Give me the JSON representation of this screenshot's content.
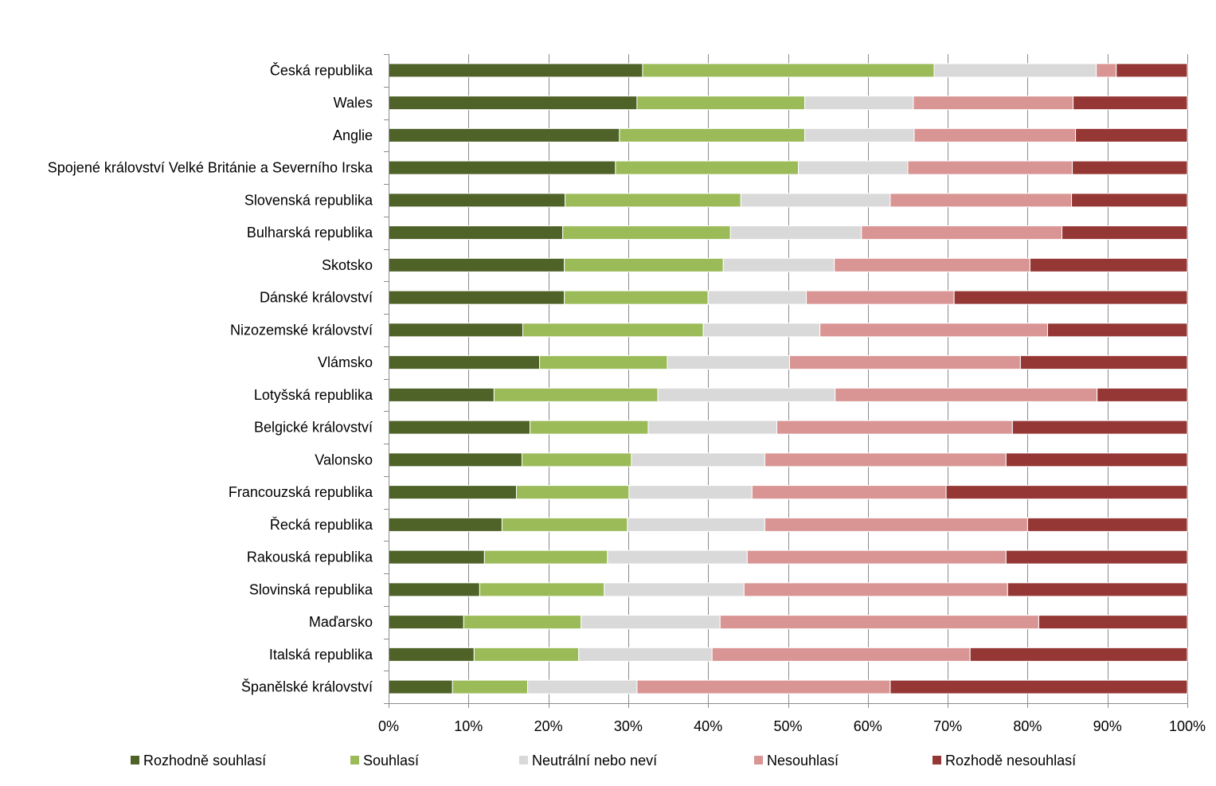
{
  "chart_data": {
    "type": "bar",
    "orientation": "horizontal",
    "stacked": "percent",
    "title": "",
    "xlabel": "",
    "ylabel": "",
    "xlim": [
      0,
      100
    ],
    "x_ticks": [
      "0%",
      "10%",
      "20%",
      "30%",
      "40%",
      "50%",
      "60%",
      "70%",
      "80%",
      "90%",
      "100%"
    ],
    "grid": "vertical",
    "legend_position": "bottom",
    "categories": [
      "Česká republika",
      "Wales",
      "Anglie",
      "Spojené království Velké Británie a Severního Irska",
      "Slovenská republika",
      "Bulharská republika",
      "Skotsko",
      "Dánské království",
      "Nizozemské království",
      "Vlámsko",
      "Lotyšská republika",
      "Belgické království",
      "Valonsko",
      "Francouzská republika",
      "Řecká republika",
      "Rakouská republika",
      "Slovinská republika",
      "Maďarsko",
      "Italská republika",
      "Španělské království"
    ],
    "series": [
      {
        "name": "Rozhodně souhlasí",
        "color": "#4f6228",
        "values": [
          31.8,
          31.1,
          28.9,
          28.4,
          22.1,
          21.8,
          22.0,
          22.0,
          16.8,
          18.9,
          13.2,
          17.7,
          16.7,
          16.0,
          14.2,
          12.0,
          11.4,
          9.4,
          10.7,
          8.0
        ]
      },
      {
        "name": "Souhlasí",
        "color": "#9bbb59",
        "values": [
          36.5,
          21.0,
          23.2,
          22.9,
          22.0,
          21.0,
          19.9,
          18.0,
          22.6,
          16.0,
          20.5,
          14.8,
          13.7,
          14.1,
          15.7,
          15.4,
          15.6,
          14.7,
          13.1,
          9.4
        ]
      },
      {
        "name": "Neutrální nebo neví",
        "color": "#d9d9d9",
        "values": [
          20.3,
          13.6,
          13.7,
          13.7,
          18.7,
          16.4,
          13.9,
          12.3,
          14.6,
          15.3,
          22.2,
          16.1,
          16.7,
          15.4,
          17.2,
          17.5,
          17.5,
          17.4,
          16.7,
          13.7
        ]
      },
      {
        "name": "Nesouhlasí",
        "color": "#d99594",
        "values": [
          2.5,
          20.0,
          20.2,
          20.6,
          22.7,
          25.1,
          24.5,
          18.5,
          28.5,
          28.9,
          32.8,
          29.5,
          30.2,
          24.3,
          32.9,
          32.4,
          33.0,
          39.9,
          32.3,
          31.7
        ]
      },
      {
        "name": "Rozhodě nesouhlasí",
        "color": "#953735",
        "values": [
          8.9,
          14.3,
          14.0,
          14.4,
          14.5,
          15.7,
          19.7,
          29.2,
          17.5,
          20.9,
          11.3,
          21.9,
          22.7,
          30.2,
          20.0,
          22.7,
          22.5,
          18.6,
          27.2,
          37.2
        ]
      }
    ]
  }
}
